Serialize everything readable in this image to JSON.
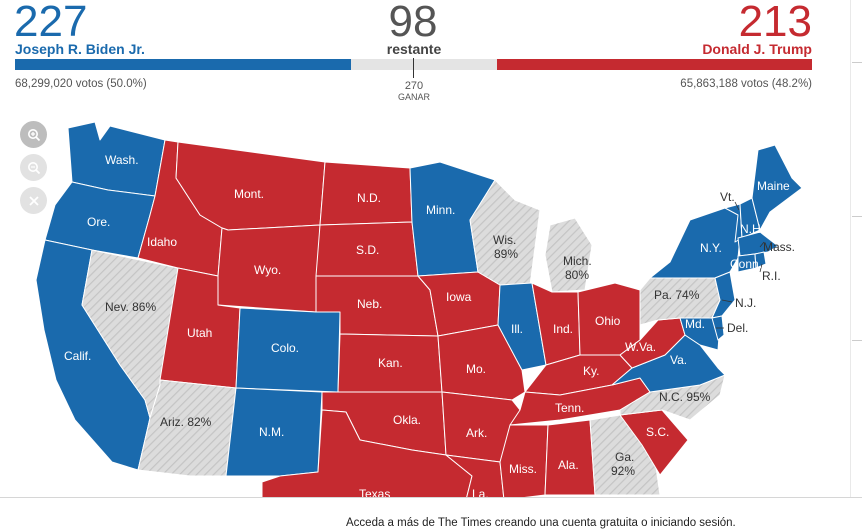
{
  "tally": {
    "dem": {
      "electoral": "227",
      "name": "Joseph R. Biden Jr.",
      "votes": "68,299,020 votos (50.0%)",
      "ev_value": 227,
      "color": "#1a6aad"
    },
    "rep": {
      "electoral": "213",
      "name": "Donald J. Trump",
      "votes": "65,863,188 votos (48.2%)",
      "ev_value": 213,
      "color": "#c52a30"
    },
    "remaining": {
      "count": "98",
      "label": "restante",
      "ev_value": 98
    },
    "threshold": {
      "value": "270",
      "label": "GANAR"
    }
  },
  "map_controls": [
    {
      "name": "zoom-in-icon"
    },
    {
      "name": "zoom-out-icon"
    },
    {
      "name": "close-icon"
    }
  ],
  "state_colors": {
    "dem": "#1a6aad",
    "rep": "#c52a30",
    "pending": "#dadada"
  },
  "states": {
    "wash": {
      "label": "Wash.",
      "status": "dem"
    },
    "ore": {
      "label": "Ore.",
      "status": "dem"
    },
    "calif": {
      "label": "Calif.",
      "status": "dem"
    },
    "nev": {
      "label": "Nev. 86%",
      "status": "pending"
    },
    "idaho": {
      "label": "Idaho",
      "status": "rep"
    },
    "mont": {
      "label": "Mont.",
      "status": "rep"
    },
    "wyo": {
      "label": "Wyo.",
      "status": "rep"
    },
    "utah": {
      "label": "Utah",
      "status": "rep"
    },
    "colo": {
      "label": "Colo.",
      "status": "dem"
    },
    "ariz": {
      "label": "Ariz. 82%",
      "status": "pending"
    },
    "nm": {
      "label": "N.M.",
      "status": "dem"
    },
    "nd": {
      "label": "N.D.",
      "status": "rep"
    },
    "sd": {
      "label": "S.D.",
      "status": "rep"
    },
    "neb": {
      "label": "Neb.",
      "status": "rep"
    },
    "kan": {
      "label": "Kan.",
      "status": "rep"
    },
    "okla": {
      "label": "Okla.",
      "status": "rep"
    },
    "texas": {
      "label": "Texas",
      "status": "rep"
    },
    "minn": {
      "label": "Minn.",
      "status": "dem"
    },
    "iowa": {
      "label": "Iowa",
      "status": "rep"
    },
    "mo": {
      "label": "Mo.",
      "status": "rep"
    },
    "ark": {
      "label": "Ark.",
      "status": "rep"
    },
    "la": {
      "label": "La.",
      "status": "rep"
    },
    "wis": {
      "label": "Wis.",
      "pct": "89%",
      "status": "pending"
    },
    "ill": {
      "label": "Ill.",
      "status": "dem"
    },
    "mich": {
      "label": "Mich.",
      "pct": "80%",
      "status": "pending"
    },
    "ind": {
      "label": "Ind.",
      "status": "rep"
    },
    "ohio": {
      "label": "Ohio",
      "status": "rep"
    },
    "ky": {
      "label": "Ky.",
      "status": "rep"
    },
    "tenn": {
      "label": "Tenn.",
      "status": "rep"
    },
    "miss": {
      "label": "Miss.",
      "status": "rep"
    },
    "ala": {
      "label": "Ala.",
      "status": "rep"
    },
    "ga": {
      "label": "Ga.",
      "pct": "92%",
      "status": "pending"
    },
    "sc": {
      "label": "S.C.",
      "status": "rep"
    },
    "nc": {
      "label": "N.C. 95%",
      "status": "pending"
    },
    "va": {
      "label": "Va.",
      "status": "dem"
    },
    "wva": {
      "label": "W.Va.",
      "status": "rep"
    },
    "pa": {
      "label": "Pa. 74%",
      "status": "pending"
    },
    "ny": {
      "label": "N.Y.",
      "status": "dem"
    },
    "maine": {
      "label": "Maine",
      "status": "dem"
    },
    "vt": {
      "label": "Vt.",
      "status": "dem"
    },
    "nh": {
      "label": "N.H.",
      "status": "dem"
    },
    "mass": {
      "label": "Mass.",
      "status": "dem"
    },
    "conn": {
      "label": "Conn.",
      "status": "dem"
    },
    "ri": {
      "label": "R.I.",
      "status": "dem"
    },
    "nj": {
      "label": "N.J.",
      "status": "dem"
    },
    "md": {
      "label": "Md.",
      "status": "dem"
    },
    "del": {
      "label": "Del.",
      "status": "dem"
    }
  },
  "footer": {
    "text": "Acceda a más de The Times creando una cuenta gratuita o iniciando sesión."
  }
}
